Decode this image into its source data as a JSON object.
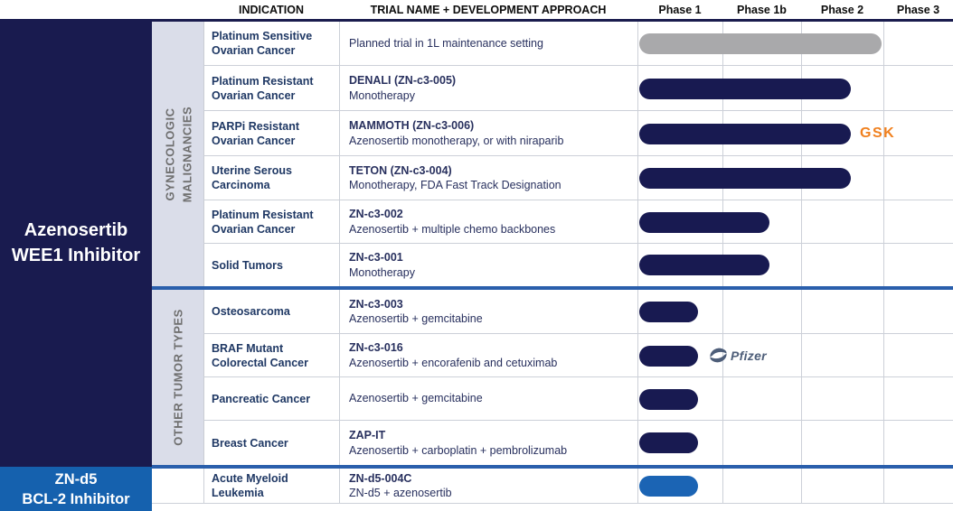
{
  "header": {
    "indication_label": "INDICATION",
    "trial_label": "TRIAL NAME + DEVELOPMENT APPROACH"
  },
  "programs": [
    {
      "line1": "Azenosertib",
      "line2": "WEE1 Inhibitor",
      "color": "#191b4f"
    },
    {
      "line1": "ZN-d5",
      "line2": "BCL-2 Inhibitor",
      "color": "#1561ae"
    }
  ],
  "sections": [
    {
      "label": "GYNECOLOGIC MALIGNANCIES",
      "display": "GYNECOLOGIC\nMALIGNANCIES"
    },
    {
      "label": "OTHER TUMOR TYPES",
      "display": "OTHER TUMOR TYPES"
    },
    {
      "label": "",
      "display": ""
    }
  ],
  "partners": {
    "gsk": {
      "text": "GSK",
      "color": "#f0801e"
    },
    "pfizer": {
      "text": "Pfizer",
      "color": "#4e5e79"
    }
  },
  "colors": {
    "bar_navy": "#181a51",
    "bar_gray": "#a9a9ab",
    "bar_blue": "#1b64b4",
    "sidebar_navy": "#191b4f",
    "sidebar_blue": "#1561ae",
    "group_bg": "#dadde9",
    "section_divider": "#2a5fac",
    "header_rule": "#1a1c4e",
    "grid_line": "#ccd0d8",
    "indication_text": "#1f3864",
    "trial_text": "#28305e",
    "vertical_label_text": "#6f6f6f"
  },
  "chart_data": {
    "type": "bar",
    "orientation": "horizontal",
    "title": "Clinical development pipeline by phase",
    "x_labels": [
      "Phase 1",
      "Phase 1b",
      "Phase 2",
      "Phase 3"
    ],
    "x_range": [
      0,
      4
    ],
    "phase_note": "phase units: 0 = Phase 1 start, 1 = Phase 1b start, 2 = Phase 2 start, 3 = Phase 3 start, 4 = Phase 3 end",
    "rows": [
      {
        "section": 0,
        "indication": "Platinum Sensitive\nOvarian Cancer",
        "trial_title": "",
        "trial_desc": "Planned trial in 1L maintenance setting",
        "phase_start": 0.02,
        "phase_end": 2.98,
        "bar_color": "#a9a9ab",
        "partner": null
      },
      {
        "section": 0,
        "indication": "Platinum Resistant\nOvarian Cancer",
        "trial_title": "DENALI (ZN-c3-005)",
        "trial_desc": "Monotherapy",
        "phase_start": 0.02,
        "phase_end": 2.6,
        "bar_color": "#181a51",
        "partner": null
      },
      {
        "section": 0,
        "indication": "PARPi Resistant\nOvarian Cancer",
        "trial_title": "MAMMOTH (ZN-c3-006)",
        "trial_desc": "Azenosertib monotherapy, or with niraparib",
        "phase_start": 0.02,
        "phase_end": 2.6,
        "bar_color": "#181a51",
        "partner": "gsk"
      },
      {
        "section": 0,
        "indication": "Uterine Serous\nCarcinoma",
        "trial_title": "TETON (ZN-c3-004)",
        "trial_desc": "Monotherapy, FDA Fast Track Designation",
        "phase_start": 0.02,
        "phase_end": 2.6,
        "bar_color": "#181a51",
        "partner": null
      },
      {
        "section": 0,
        "indication": "Platinum Resistant\nOvarian Cancer",
        "trial_title": "ZN-c3-002",
        "trial_desc": "Azenosertib + multiple chemo backbones",
        "phase_start": 0.02,
        "phase_end": 1.6,
        "bar_color": "#181a51",
        "partner": null
      },
      {
        "section": 0,
        "indication": "Solid Tumors",
        "trial_title": "ZN-c3-001",
        "trial_desc": "Monotherapy",
        "phase_start": 0.02,
        "phase_end": 1.6,
        "bar_color": "#181a51",
        "partner": null
      },
      {
        "section": 1,
        "indication": "Osteosarcoma",
        "trial_title": "ZN-c3-003",
        "trial_desc": "Azenosertib + gemcitabine",
        "phase_start": 0.02,
        "phase_end": 0.71,
        "bar_color": "#181a51",
        "partner": null
      },
      {
        "section": 1,
        "indication": "BRAF Mutant\nColorectal Cancer",
        "trial_title": "ZN-c3-016",
        "trial_desc": "Azenosertib + encorafenib and cetuximab",
        "phase_start": 0.02,
        "phase_end": 0.71,
        "bar_color": "#181a51",
        "partner": "pfizer"
      },
      {
        "section": 1,
        "indication": "Pancreatic Cancer",
        "trial_title": "",
        "trial_desc": "Azenosertib + gemcitabine",
        "phase_start": 0.02,
        "phase_end": 0.71,
        "bar_color": "#181a51",
        "partner": null
      },
      {
        "section": 1,
        "indication": "Breast Cancer",
        "trial_title": "ZAP-IT",
        "trial_desc": "Azenosertib + carboplatin + pembrolizumab",
        "phase_start": 0.02,
        "phase_end": 0.71,
        "bar_color": "#181a51",
        "partner": null
      },
      {
        "section": 2,
        "indication": "Acute Myeloid\nLeukemia",
        "trial_title": "ZN-d5-004C",
        "trial_desc": "ZN-d5 + azenosertib",
        "phase_start": 0.02,
        "phase_end": 0.71,
        "bar_color": "#1b64b4",
        "partner": null
      }
    ]
  }
}
